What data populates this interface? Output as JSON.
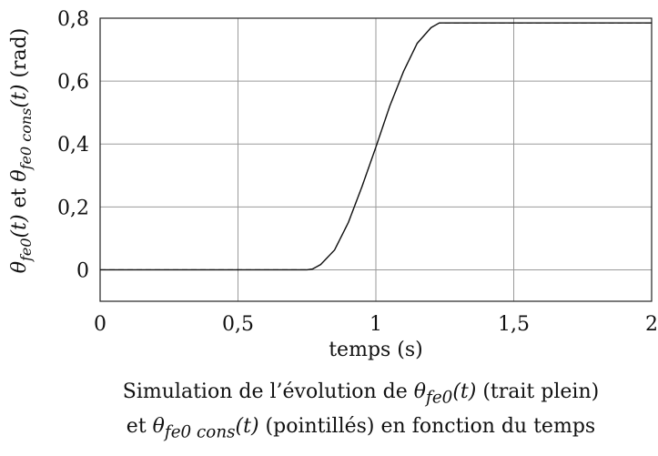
{
  "chart_data": {
    "type": "line",
    "xlabel": "temps (s)",
    "ylabel": "θfe0(t) et θfe0 cons(t) (rad)",
    "xlim": [
      0,
      2
    ],
    "ylim": [
      -0.1,
      0.8
    ],
    "grid": true,
    "x_ticks": [
      {
        "value": 0,
        "label": "0"
      },
      {
        "value": 0.5,
        "label": "0,5"
      },
      {
        "value": 1,
        "label": "1"
      },
      {
        "value": 1.5,
        "label": "1,5"
      },
      {
        "value": 2,
        "label": "2"
      }
    ],
    "y_ticks": [
      {
        "value": 0,
        "label": "0"
      },
      {
        "value": 0.2,
        "label": "0,2"
      },
      {
        "value": 0.4,
        "label": "0,4"
      },
      {
        "value": 0.6,
        "label": "0,6"
      },
      {
        "value": 0.8,
        "label": "0,8"
      }
    ],
    "series": [
      {
        "style": "solid",
        "x": [
          0,
          0.5,
          0.75,
          0.77,
          0.8,
          0.85,
          0.9,
          0.95,
          1.0,
          1.05,
          1.1,
          1.15,
          1.2,
          1.23,
          1.25,
          1.5,
          2.0
        ],
        "y": [
          0,
          0,
          0,
          0.0025,
          0.017,
          0.063,
          0.15,
          0.265,
          0.39,
          0.52,
          0.63,
          0.72,
          0.77,
          0.785,
          0.785,
          0.785,
          0.785
        ]
      },
      {
        "style": "dashed",
        "x": [
          0,
          0.5,
          0.75,
          0.77,
          0.8,
          0.85,
          0.9,
          0.95,
          1.0,
          1.05,
          1.1,
          1.15,
          1.2,
          1.23,
          1.25,
          1.5,
          2.0
        ],
        "y": [
          0,
          0,
          0,
          0.0025,
          0.017,
          0.063,
          0.15,
          0.265,
          0.39,
          0.52,
          0.63,
          0.72,
          0.77,
          0.785,
          0.785,
          0.785,
          0.785
        ]
      }
    ]
  },
  "caption": {
    "line1_prefix": "Simulation de l’évolution de ",
    "line1_theta": "θ",
    "line1_sub": "fe0",
    "line1_arg": "(t)",
    "line1_suffix": " (trait plein)",
    "line2_prefix": "et ",
    "line2_theta": "θ",
    "line2_sub": "fe0 cons",
    "line2_arg": "(t)",
    "line2_suffix": " (pointillés) en fonction du temps"
  }
}
